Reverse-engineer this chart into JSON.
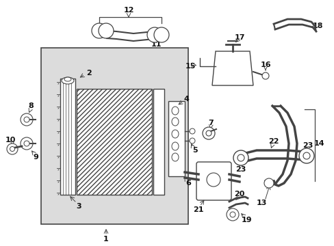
{
  "bg_color": "#ffffff",
  "lc": "#444444",
  "tc": "#111111",
  "box_bg": "#e0e0e0",
  "figsize": [
    4.89,
    3.6
  ],
  "dpi": 100
}
